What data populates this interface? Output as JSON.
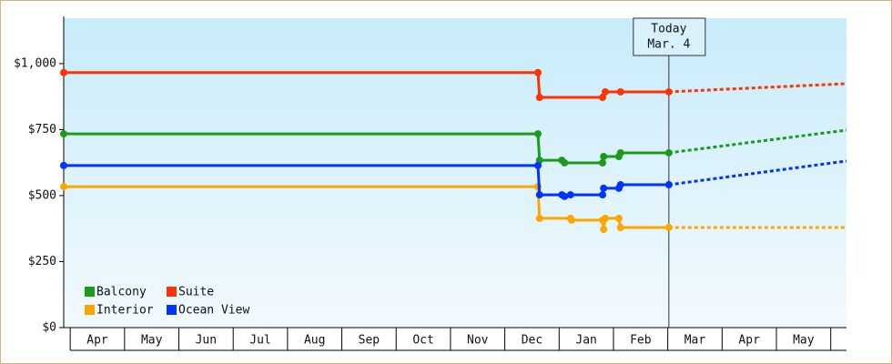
{
  "chart_data": {
    "type": "line",
    "xlim": [
      -0.12,
      14.29
    ],
    "xticks": [
      {
        "value": 0.5,
        "label": "Apr"
      },
      {
        "value": 1.5,
        "label": "May"
      },
      {
        "value": 2.5,
        "label": "Jun"
      },
      {
        "value": 3.5,
        "label": "Jul"
      },
      {
        "value": 4.5,
        "label": "Aug"
      },
      {
        "value": 5.5,
        "label": "Sep"
      },
      {
        "value": 6.5,
        "label": "Oct"
      },
      {
        "value": 7.5,
        "label": "Nov"
      },
      {
        "value": 8.5,
        "label": "Dec"
      },
      {
        "value": 9.5,
        "label": "Jan"
      },
      {
        "value": 10.5,
        "label": "Feb"
      },
      {
        "value": 11.5,
        "label": "Mar"
      },
      {
        "value": 12.5,
        "label": "Apr"
      },
      {
        "value": 13.5,
        "label": "May"
      }
    ],
    "ylim": [
      0,
      1172
    ],
    "yticks": [
      {
        "value": 0,
        "label": "$0"
      },
      {
        "value": 250,
        "label": "$250"
      },
      {
        "value": 500,
        "label": "$500"
      },
      {
        "value": 750,
        "label": "$750"
      },
      {
        "value": 1000,
        "label": "$1,000"
      }
    ],
    "annotation": {
      "x": 11.02,
      "lines": [
        "Today",
        "Mar. 4"
      ]
    },
    "series": [
      {
        "name": "Balcony",
        "color": "#1a9c1a",
        "x": [
          -0.12,
          8.61,
          8.64,
          9.05,
          9.1,
          9.8,
          9.82,
          10.1,
          10.13,
          11.02
        ],
        "values": [
          734,
          734,
          634,
          634,
          624,
          624,
          648,
          648,
          662,
          662
        ],
        "forecast": {
          "x": [
            11.02,
            14.29
          ],
          "values": [
            662,
            748
          ]
        }
      },
      {
        "name": "Suite",
        "color": "#ff3300",
        "x": [
          -0.12,
          8.61,
          8.64,
          9.8,
          9.85,
          10.13,
          11.02
        ],
        "values": [
          966,
          966,
          872,
          872,
          893,
          893,
          893
        ],
        "forecast": {
          "x": [
            11.02,
            14.29
          ],
          "values": [
            893,
            924
          ]
        }
      },
      {
        "name": "Interior",
        "color": "#ffa500",
        "x": [
          -0.12,
          8.61,
          8.64,
          9.21,
          9.23,
          9.8,
          9.82,
          9.85,
          10.1,
          10.13,
          11.02
        ],
        "values": [
          534,
          534,
          414,
          414,
          407,
          407,
          372,
          414,
          414,
          379,
          379
        ],
        "forecast": {
          "x": [
            11.02,
            14.29
          ],
          "values": [
            379,
            379
          ]
        }
      },
      {
        "name": "Ocean View",
        "color": "#0033ff",
        "x": [
          -0.12,
          8.61,
          8.64,
          9.05,
          9.1,
          9.21,
          9.8,
          9.82,
          10.1,
          10.13,
          11.02
        ],
        "values": [
          614,
          614,
          503,
          503,
          497,
          503,
          503,
          528,
          528,
          541,
          541
        ],
        "forecast": {
          "x": [
            11.02,
            14.29
          ],
          "values": [
            541,
            631
          ]
        }
      }
    ]
  }
}
